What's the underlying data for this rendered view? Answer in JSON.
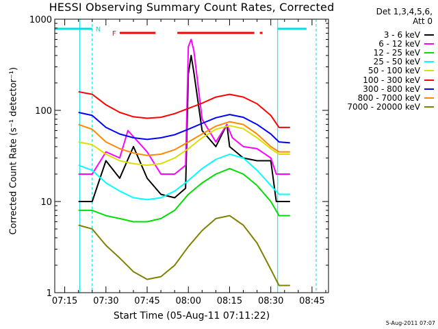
{
  "chart_data": {
    "type": "line",
    "title": "HESSI Observing Summary Count Rates, Corrected",
    "ylabel": "Corrected Count Rate (s⁻¹ detector⁻¹)",
    "xlabel": "Start Time (05-Aug-11 07:11:22)",
    "y_scale": "log",
    "ylim": [
      1,
      1000
    ],
    "y_ticks": [
      {
        "value": 1,
        "label": "1"
      },
      {
        "value": 10,
        "label": "10"
      },
      {
        "value": 100,
        "label": "100"
      },
      {
        "value": 1000,
        "label": "1000"
      }
    ],
    "xlim": [
      "07:11:22",
      "08:51:00"
    ],
    "x_ticks": [
      "07:15",
      "07:30",
      "07:45",
      "08:00",
      "08:15",
      "08:30",
      "08:45"
    ],
    "data_window": [
      "07:20:00",
      "08:37:30"
    ],
    "legend_header": [
      "Det 1,3,4,5,6,",
      "Att 0"
    ],
    "series": [
      {
        "name": "3 - 6 keV",
        "color": "#000000",
        "points": [
          [
            "07:20",
            10
          ],
          [
            "07:25",
            10
          ],
          [
            "07:30",
            28
          ],
          [
            "07:35",
            18
          ],
          [
            "07:40",
            40
          ],
          [
            "07:45",
            18
          ],
          [
            "07:50",
            12
          ],
          [
            "07:55",
            11
          ],
          [
            "07:59",
            14
          ],
          [
            "08:00",
            250
          ],
          [
            "08:01",
            400
          ],
          [
            "08:02",
            260
          ],
          [
            "08:05",
            60
          ],
          [
            "08:10",
            40
          ],
          [
            "08:14",
            70
          ],
          [
            "08:15",
            40
          ],
          [
            "08:20",
            30
          ],
          [
            "08:25",
            28
          ],
          [
            "08:30",
            28
          ],
          [
            "08:32",
            10
          ],
          [
            "08:37",
            10
          ]
        ]
      },
      {
        "name": "6 - 12 keV",
        "color": "#ff00ff",
        "points": [
          [
            "07:20",
            20
          ],
          [
            "07:25",
            20
          ],
          [
            "07:30",
            35
          ],
          [
            "07:35",
            30
          ],
          [
            "07:38",
            60
          ],
          [
            "07:45",
            35
          ],
          [
            "07:50",
            20
          ],
          [
            "07:55",
            20
          ],
          [
            "07:59",
            25
          ],
          [
            "08:00",
            500
          ],
          [
            "08:01",
            600
          ],
          [
            "08:02",
            450
          ],
          [
            "08:05",
            80
          ],
          [
            "08:10",
            45
          ],
          [
            "08:14",
            70
          ],
          [
            "08:16",
            50
          ],
          [
            "08:20",
            40
          ],
          [
            "08:25",
            38
          ],
          [
            "08:30",
            30
          ],
          [
            "08:32",
            20
          ],
          [
            "08:37",
            20
          ]
        ]
      },
      {
        "name": "12 - 25 keV",
        "color": "#00dd00",
        "points": [
          [
            "07:20",
            8
          ],
          [
            "07:25",
            8
          ],
          [
            "07:30",
            7
          ],
          [
            "07:35",
            6.5
          ],
          [
            "07:40",
            6
          ],
          [
            "07:45",
            6
          ],
          [
            "07:50",
            6.5
          ],
          [
            "07:55",
            8
          ],
          [
            "08:00",
            12
          ],
          [
            "08:05",
            16
          ],
          [
            "08:10",
            20
          ],
          [
            "08:15",
            23
          ],
          [
            "08:20",
            20
          ],
          [
            "08:25",
            15
          ],
          [
            "08:30",
            10
          ],
          [
            "08:33",
            7
          ],
          [
            "08:37",
            7
          ]
        ]
      },
      {
        "name": "25 - 50 keV",
        "color": "#00ffff",
        "points": [
          [
            "07:20",
            25
          ],
          [
            "07:25",
            22
          ],
          [
            "07:30",
            16
          ],
          [
            "07:35",
            13
          ],
          [
            "07:40",
            11
          ],
          [
            "07:45",
            10.5
          ],
          [
            "07:50",
            11
          ],
          [
            "07:55",
            13
          ],
          [
            "08:00",
            17
          ],
          [
            "08:05",
            23
          ],
          [
            "08:10",
            29
          ],
          [
            "08:15",
            33
          ],
          [
            "08:20",
            30
          ],
          [
            "08:25",
            22
          ],
          [
            "08:30",
            15
          ],
          [
            "08:33",
            12
          ],
          [
            "08:37",
            12
          ]
        ]
      },
      {
        "name": "50 - 100 keV",
        "color": "#dddd00",
        "points": [
          [
            "07:20",
            45
          ],
          [
            "07:25",
            42
          ],
          [
            "07:30",
            33
          ],
          [
            "07:35",
            28
          ],
          [
            "07:40",
            26
          ],
          [
            "07:45",
            25
          ],
          [
            "07:50",
            26
          ],
          [
            "07:55",
            30
          ],
          [
            "08:00",
            38
          ],
          [
            "08:05",
            50
          ],
          [
            "08:10",
            62
          ],
          [
            "08:15",
            68
          ],
          [
            "08:20",
            63
          ],
          [
            "08:25",
            50
          ],
          [
            "08:30",
            38
          ],
          [
            "08:33",
            33
          ],
          [
            "08:37",
            33
          ]
        ]
      },
      {
        "name": "100 - 300 keV",
        "color": "#ff0000",
        "points": [
          [
            "07:20",
            160
          ],
          [
            "07:25",
            150
          ],
          [
            "07:30",
            115
          ],
          [
            "07:35",
            95
          ],
          [
            "07:40",
            85
          ],
          [
            "07:45",
            82
          ],
          [
            "07:50",
            84
          ],
          [
            "07:55",
            92
          ],
          [
            "08:00",
            105
          ],
          [
            "08:05",
            120
          ],
          [
            "08:10",
            140
          ],
          [
            "08:15",
            150
          ],
          [
            "08:20",
            140
          ],
          [
            "08:25",
            118
          ],
          [
            "08:30",
            88
          ],
          [
            "08:33",
            65
          ],
          [
            "08:37",
            65
          ]
        ]
      },
      {
        "name": "300 - 800 keV",
        "color": "#0000ff",
        "points": [
          [
            "07:20",
            95
          ],
          [
            "07:25",
            88
          ],
          [
            "07:30",
            65
          ],
          [
            "07:35",
            55
          ],
          [
            "07:40",
            50
          ],
          [
            "07:45",
            48
          ],
          [
            "07:50",
            50
          ],
          [
            "07:55",
            54
          ],
          [
            "08:00",
            62
          ],
          [
            "08:05",
            72
          ],
          [
            "08:10",
            83
          ],
          [
            "08:15",
            90
          ],
          [
            "08:20",
            84
          ],
          [
            "08:25",
            70
          ],
          [
            "08:30",
            55
          ],
          [
            "08:33",
            45
          ],
          [
            "08:37",
            44
          ]
        ]
      },
      {
        "name": "800 - 7000 keV",
        "color": "#ff8800",
        "points": [
          [
            "07:20",
            70
          ],
          [
            "07:25",
            62
          ],
          [
            "07:30",
            45
          ],
          [
            "07:35",
            38
          ],
          [
            "07:40",
            34
          ],
          [
            "07:45",
            32
          ],
          [
            "07:50",
            33
          ],
          [
            "07:55",
            37
          ],
          [
            "08:00",
            45
          ],
          [
            "08:05",
            55
          ],
          [
            "08:10",
            67
          ],
          [
            "08:15",
            75
          ],
          [
            "08:20",
            70
          ],
          [
            "08:25",
            55
          ],
          [
            "08:30",
            40
          ],
          [
            "08:33",
            35
          ],
          [
            "08:37",
            35
          ]
        ]
      },
      {
        "name": "7000 - 20000 keV",
        "color": "#808000",
        "points": [
          [
            "07:20",
            5.5
          ],
          [
            "07:25",
            5
          ],
          [
            "07:30",
            3.3
          ],
          [
            "07:35",
            2.4
          ],
          [
            "07:40",
            1.7
          ],
          [
            "07:45",
            1.4
          ],
          [
            "07:50",
            1.5
          ],
          [
            "07:55",
            2
          ],
          [
            "08:00",
            3.2
          ],
          [
            "08:05",
            4.8
          ],
          [
            "08:10",
            6.5
          ],
          [
            "08:15",
            7
          ],
          [
            "08:20",
            5.5
          ],
          [
            "08:25",
            3.5
          ],
          [
            "08:30",
            1.8
          ],
          [
            "08:33",
            1.2
          ],
          [
            "08:37",
            1.2
          ]
        ]
      }
    ],
    "annotations": [
      {
        "kind": "flag_bar",
        "label": "N",
        "color": "#00dddd",
        "ranges": [
          [
            "07:11:22",
            "07:25:00"
          ],
          [
            "08:32:30",
            "08:43:00"
          ]
        ]
      },
      {
        "kind": "flag_bar",
        "label": "F",
        "color": "#ff0000",
        "ranges": [
          [
            "07:35:00",
            "07:48:00"
          ],
          [
            "07:56:00",
            "08:24:00"
          ],
          [
            "08:26:00",
            "08:27:00"
          ]
        ]
      },
      {
        "kind": "vline",
        "style": "solid",
        "color": "#00dddd",
        "x": [
          "07:20:30",
          "08:32:30"
        ]
      },
      {
        "kind": "vline",
        "style": "dashed",
        "color": "#00dddd",
        "x": [
          "07:25:00",
          "08:46:30"
        ]
      }
    ],
    "grid": false,
    "legend_position": "right"
  },
  "footer": {
    "timestamp": "5-Aug-2011 07:07"
  }
}
